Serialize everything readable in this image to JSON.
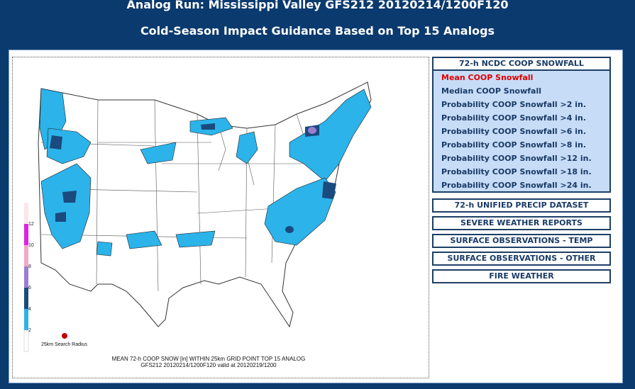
{
  "header": {
    "title": "Analog Run: Mississippi Valley GFS212 20120214/1200F120",
    "subtitle": "Cold-Season Impact Guidance Based on Top 15 Analogs"
  },
  "map": {
    "caption_line1": "MEAN 72-h COOP SNOW [in] WITHIN 25km GRID POINT TOP 15 ANALOG",
    "caption_line2": "GFS212 20120214/1200F120 valid at 20120219/1200",
    "radius_label": "25km Search Radius",
    "scale_labels": [
      "12",
      "10",
      "8",
      "6",
      "4",
      "2"
    ],
    "colors": {
      "light": "#2bb3ea",
      "dark": "#1a4a7e",
      "purple": "#9a7ed0",
      "magenta": "#e020e0",
      "pink": "#f0a8c8",
      "radius_dot": "#c00000"
    }
  },
  "menu": {
    "snowfall_header": "72-h NCDC COOP SNOWFALL",
    "snowfall_items": [
      {
        "label": "Mean COOP Snowfall",
        "active": true
      },
      {
        "label": "Median COOP Snowfall",
        "active": false
      },
      {
        "label": "Probability COOP Snowfall >2 in.",
        "active": false
      },
      {
        "label": "Probability COOP Snowfall >4 in.",
        "active": false
      },
      {
        "label": "Probability COOP Snowfall >6 in.",
        "active": false
      },
      {
        "label": "Probability COOP Snowfall >8 in.",
        "active": false
      },
      {
        "label": "Probability COOP Snowfall >12 in.",
        "active": false
      },
      {
        "label": "Probability COOP Snowfall >18 in.",
        "active": false
      },
      {
        "label": "Probability COOP Snowfall >24 in.",
        "active": false
      }
    ],
    "precip": "72-h UNIFIED PRECIP DATASET",
    "severe": "SEVERE WEATHER REPORTS",
    "temp": "SURFACE OBSERVATIONS - TEMP",
    "other": "SURFACE OBSERVATIONS - OTHER",
    "fire": "FIRE WEATHER"
  }
}
